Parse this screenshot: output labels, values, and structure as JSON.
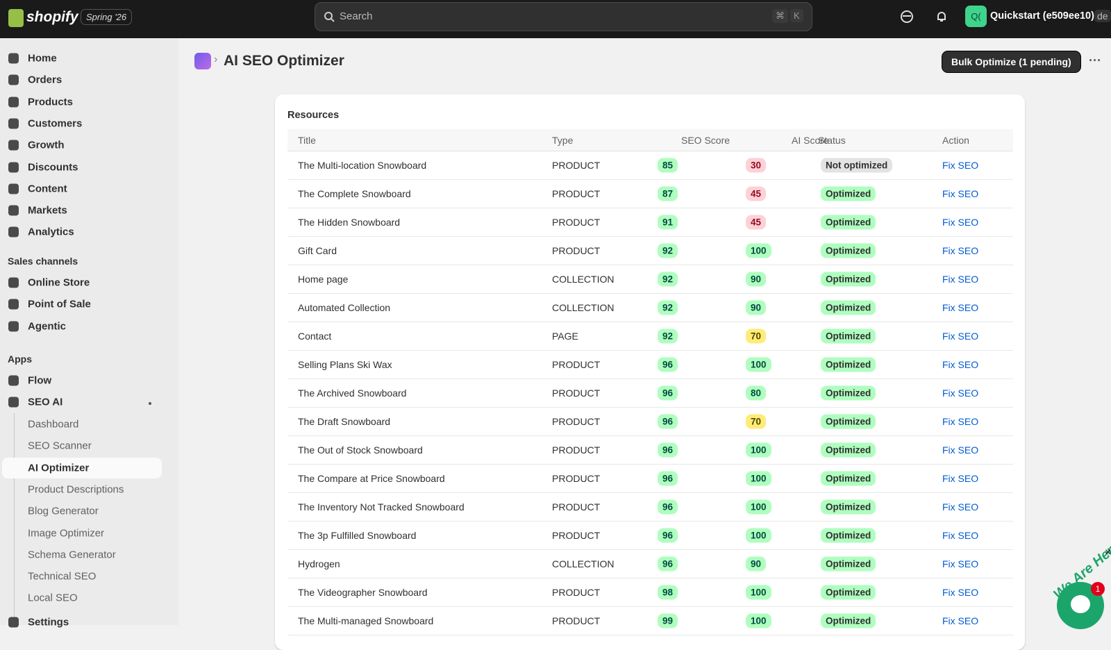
{
  "topbar": {
    "logo": "shopify",
    "edition": "Spring '26",
    "search": "Search",
    "shortcut": [
      "⌘",
      "K"
    ],
    "avatar": "Q(",
    "store": "Quickstart (e509ee10)",
    "store_overflow": "de"
  },
  "sidebar": {
    "nav": [
      "Home",
      "Orders",
      "Products",
      "Customers",
      "Growth",
      "Discounts",
      "Content",
      "Markets",
      "Analytics"
    ],
    "sales_channels": {
      "title": "Sales channels",
      "items": [
        "Online Store",
        "Point of Sale",
        "Agentic"
      ]
    },
    "apps": {
      "title": "Apps",
      "items": [
        "Flow",
        "SEO AI"
      ],
      "subitems": [
        "Dashboard",
        "SEO Scanner",
        "AI Optimizer",
        "Product Descriptions",
        "Blog Generator",
        "Image Optimizer",
        "Schema Generator",
        "Technical SEO",
        "Local SEO"
      ]
    },
    "settings": "Settings"
  },
  "header": {
    "title": "AI SEO Optimizer",
    "button": "Bulk Optimize (1 pending)"
  },
  "card": {
    "title": "Resources",
    "columns": [
      "Title",
      "Type",
      "SEO Score",
      "AI Score",
      "Status",
      "Action"
    ],
    "rows": [
      {
        "title": "The Multi-location Snowboard",
        "type": "PRODUCT",
        "seo": 85,
        "ai": 30,
        "status": "Not optimized",
        "status_color": "#e3e3e3",
        "action": "Fix SEO"
      },
      {
        "title": "The Complete Snowboard",
        "type": "PRODUCT",
        "seo": 87,
        "ai": 45,
        "status": "Optimized",
        "status_color": "#affebf",
        "action": "Fix SEO"
      },
      {
        "title": "The Hidden Snowboard",
        "type": "PRODUCT",
        "seo": 91,
        "ai": 45,
        "status": "Optimized",
        "status_color": "#affebf",
        "action": "Fix SEO"
      },
      {
        "title": "Gift Card",
        "type": "PRODUCT",
        "seo": 92,
        "ai": 100,
        "status": "Optimized",
        "status_color": "#affebf",
        "action": "Fix SEO"
      },
      {
        "title": "Home page",
        "type": "COLLECTION",
        "seo": 92,
        "ai": 90,
        "status": "Optimized",
        "status_color": "#affebf",
        "action": "Fix SEO"
      },
      {
        "title": "Automated Collection",
        "type": "COLLECTION",
        "seo": 92,
        "ai": 90,
        "status": "Optimized",
        "status_color": "#affebf",
        "action": "Fix SEO"
      },
      {
        "title": "Contact",
        "type": "PAGE",
        "seo": 92,
        "ai": 70,
        "status": "Optimized",
        "status_color": "#affebf",
        "action": "Fix SEO"
      },
      {
        "title": "Selling Plans Ski Wax",
        "type": "PRODUCT",
        "seo": 96,
        "ai": 100,
        "status": "Optimized",
        "status_color": "#affebf",
        "action": "Fix SEO"
      },
      {
        "title": "The Archived Snowboard",
        "type": "PRODUCT",
        "seo": 96,
        "ai": 80,
        "status": "Optimized",
        "status_color": "#affebf",
        "action": "Fix SEO"
      },
      {
        "title": "The Draft Snowboard",
        "type": "PRODUCT",
        "seo": 96,
        "ai": 70,
        "status": "Optimized",
        "status_color": "#affebf",
        "action": "Fix SEO"
      },
      {
        "title": "The Out of Stock Snowboard",
        "type": "PRODUCT",
        "seo": 96,
        "ai": 100,
        "status": "Optimized",
        "status_color": "#affebf",
        "action": "Fix SEO"
      },
      {
        "title": "The Compare at Price Snowboard",
        "type": "PRODUCT",
        "seo": 96,
        "ai": 100,
        "status": "Optimized",
        "status_color": "#affebf",
        "action": "Fix SEO"
      },
      {
        "title": "The Inventory Not Tracked Snowboard",
        "type": "PRODUCT",
        "seo": 96,
        "ai": 100,
        "status": "Optimized",
        "status_color": "#affebf",
        "action": "Fix SEO"
      },
      {
        "title": "The 3p Fulfilled Snowboard",
        "type": "PRODUCT",
        "seo": 96,
        "ai": 100,
        "status": "Optimized",
        "status_color": "#affebf",
        "action": "Fix SEO"
      },
      {
        "title": "Hydrogen",
        "type": "COLLECTION",
        "seo": 96,
        "ai": 90,
        "status": "Optimized",
        "status_color": "#affebf",
        "action": "Fix SEO"
      },
      {
        "title": "The Videographer Snowboard",
        "type": "PRODUCT",
        "seo": 98,
        "ai": 100,
        "status": "Optimized",
        "status_color": "#affebf",
        "action": "Fix SEO"
      },
      {
        "title": "The Multi-managed Snowboard",
        "type": "PRODUCT",
        "seo": 99,
        "ai": 100,
        "status": "Optimized",
        "status_color": "#affebf",
        "action": "Fix SEO"
      }
    ]
  },
  "chat": {
    "caption": "We Are Here!",
    "unread": "1"
  }
}
